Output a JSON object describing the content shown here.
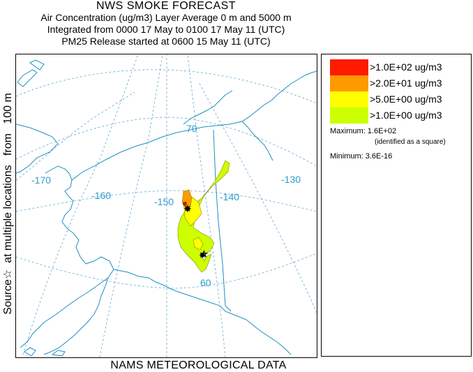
{
  "title": {
    "line1": "NWS SMOKE FORECAST",
    "line2": "Air Concentration (ug/m3) Layer Average    0 m and  5000 m",
    "line3": "Integrated from 0000 17 May to 0100 17 May 11 (UTC)",
    "line4": "PM25 Release started at 0600 15 May 11 (UTC)"
  },
  "side_label": "Source☆  at multiple locations   from   100 m",
  "bottom_label": "NAMS METEOROLOGICAL DATA",
  "legend": {
    "items": [
      {
        "color": "#ff1a00",
        "label": ">1.0E+02 ug/m3"
      },
      {
        "color": "#ff9900",
        "label": ">2.0E+01 ug/m3"
      },
      {
        "color": "#ffff00",
        "label": ">5.0E+00 ug/m3"
      },
      {
        "color": "#ccff00",
        "label": ">1.0E+00 ug/m3"
      }
    ],
    "maximum": "Maximum: 1.6E+02",
    "maximum_note": "(identified as a square)",
    "minimum": "Minimum: 3.6E-16"
  },
  "graticule_labels": {
    "lon_170": "-170",
    "lon_160": "-160",
    "lon_150": "-150",
    "lon_140": "-140",
    "lon_130": "-130",
    "lat_70": "70",
    "lat_60": "60"
  },
  "colors": {
    "coastline": "#1e8fbf",
    "graticule": "#5fa8d3",
    "plume_outline": "#8a8a00"
  }
}
